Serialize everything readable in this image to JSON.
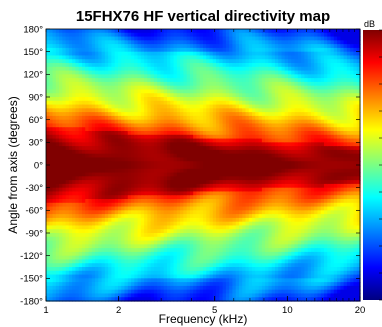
{
  "chart_data": {
    "type": "heatmap",
    "title": "15FHX76 HF vertical directivity map",
    "xlabel": "Frequency (kHz)",
    "ylabel": "Angle from axis (degrees)",
    "x_scale": "log",
    "xlim": [
      1,
      20
    ],
    "ylim": [
      -180,
      180
    ],
    "x_ticks": [
      1,
      2,
      5,
      10,
      20
    ],
    "x_tick_labels": [
      "1",
      "2",
      "5",
      "10",
      "20"
    ],
    "y_ticks": [
      180,
      150,
      120,
      90,
      60,
      30,
      0,
      -30,
      -60,
      -90,
      -120,
      -150,
      -180
    ],
    "y_tick_labels": [
      "180°",
      "150°",
      "120°",
      "90°",
      "60°",
      "30°",
      "0°",
      "-30°",
      "-60°",
      "-90°",
      "-120°",
      "-150°",
      "-180°"
    ],
    "colorbar": {
      "label": "dB",
      "tick_labels": []
    },
    "grid": false,
    "colormap": "jet",
    "z_range_dB": [
      -33,
      0
    ],
    "directivity_half_width_deg": {
      "frequency_kHz": [
        1,
        2,
        5,
        10,
        20
      ],
      "minus_6dB_half_angle": [
        58,
        48,
        40,
        34,
        27
      ]
    },
    "approximate_map": {
      "frequency_kHz": [
        1,
        2,
        5,
        10,
        20
      ],
      "angle_deg": [
        0,
        30,
        60,
        90,
        120,
        150,
        180
      ],
      "level_dB": [
        [
          0,
          -2,
          -7,
          -13,
          -19,
          -23,
          -21
        ],
        [
          0,
          -2,
          -9,
          -15,
          -21,
          -25,
          -25
        ],
        [
          0,
          -3,
          -11,
          -17,
          -22,
          -24,
          -26
        ],
        [
          0,
          -4,
          -13,
          -20,
          -24,
          -28,
          -30
        ],
        [
          0,
          -5,
          -14,
          -20,
          -25,
          -31,
          -33
        ]
      ]
    }
  }
}
